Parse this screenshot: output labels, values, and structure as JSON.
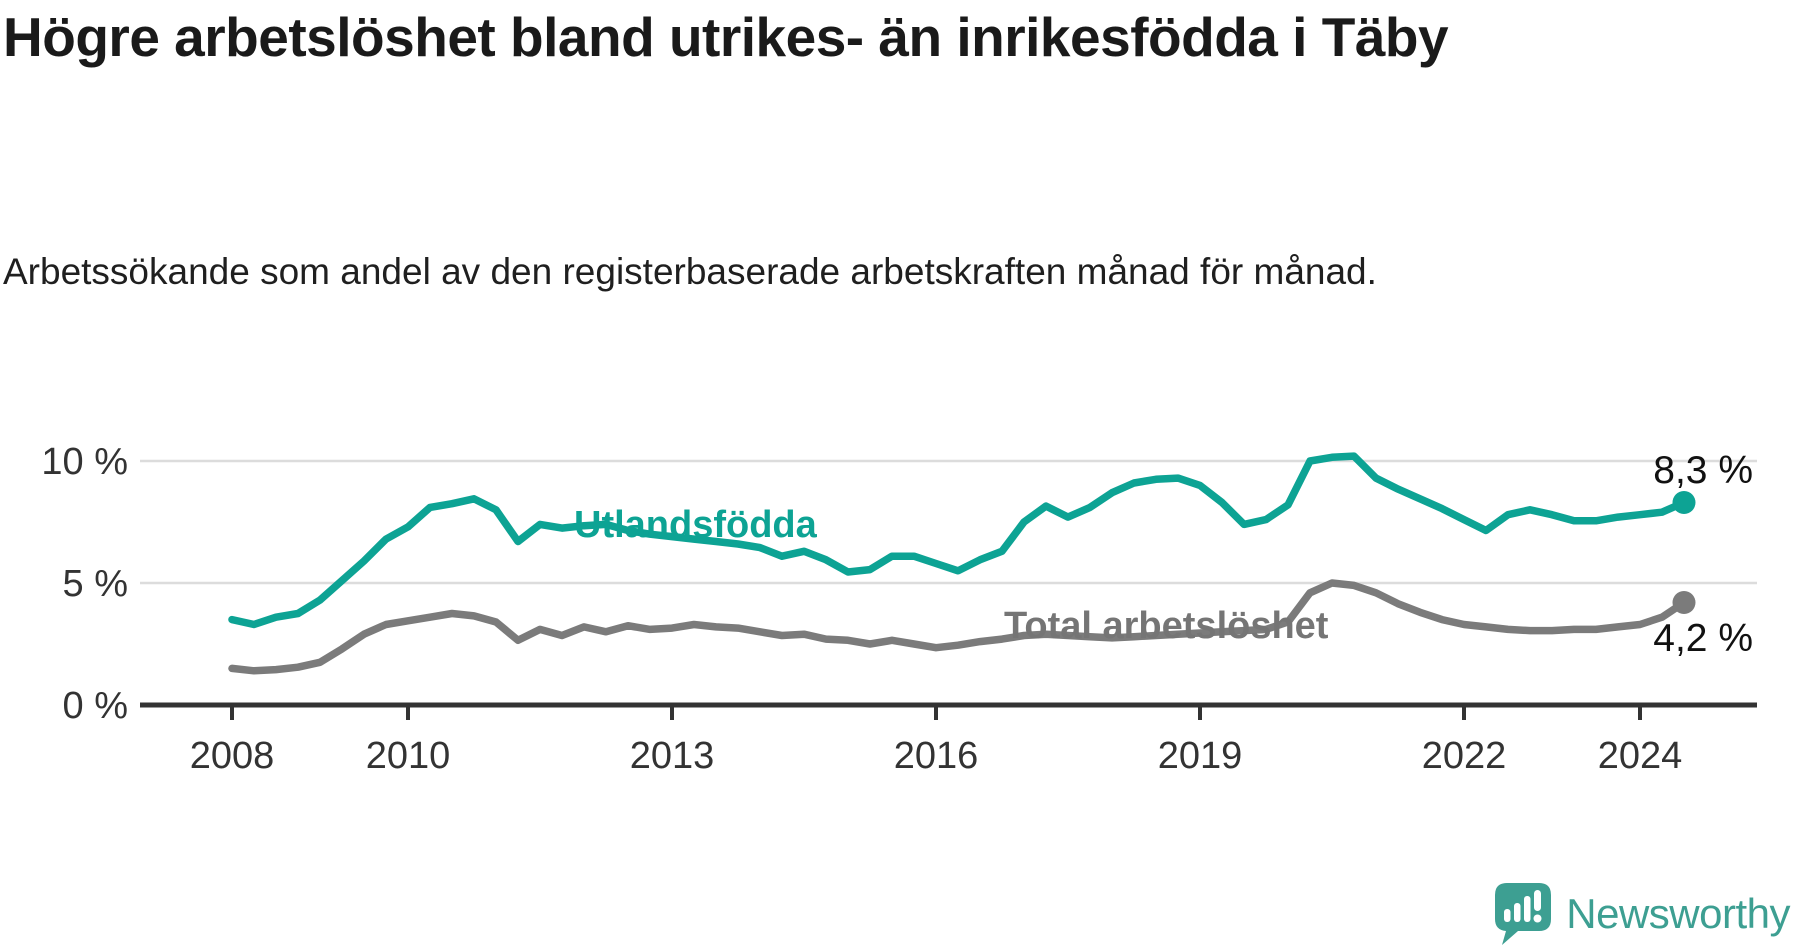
{
  "header": {
    "title": "Högre arbetslöshet bland utrikes- än inrikesfödda i Täby",
    "subtitle": "Arbetssökande som andel av den registerbaserade arbetskraften månad för månad."
  },
  "footer": {
    "brand": "Newsworthy",
    "brand_color": "#3d9f92",
    "logo_icon": "speech-bubble-bar-chart-exclamation"
  },
  "chart_data": {
    "type": "line",
    "title": "Högre arbetslöshet bland utrikes- än inrikesfödda i Täby",
    "xlabel": "",
    "ylabel": "",
    "grid": "horizontal",
    "legend": "inline-labels",
    "xlim": [
      2006.95,
      2025.33
    ],
    "ylim": [
      0,
      11.2
    ],
    "x_ticks": [
      2008,
      2010,
      2013,
      2016,
      2019,
      2022,
      2024
    ],
    "x_tick_labels": [
      "2008",
      "2010",
      "2013",
      "2016",
      "2019",
      "2022",
      "2024"
    ],
    "y_ticks": [
      0,
      5,
      10
    ],
    "y_tick_labels": [
      "0 %",
      "5 %",
      "10 %"
    ],
    "gridline_color": "#dcdcdc",
    "axis_color": "#333333",
    "series": [
      {
        "name": "Utlandsfödda",
        "color": "#0da394",
        "end_label": "8,3 %",
        "end_value": 8.3,
        "x": [
          2008.0,
          2008.25,
          2008.5,
          2008.75,
          2009.0,
          2009.25,
          2009.5,
          2009.75,
          2010.0,
          2010.25,
          2010.5,
          2010.75,
          2011.0,
          2011.25,
          2011.5,
          2011.75,
          2012.0,
          2012.25,
          2012.5,
          2012.75,
          2013.0,
          2013.25,
          2013.5,
          2013.75,
          2014.0,
          2014.25,
          2014.5,
          2014.75,
          2015.0,
          2015.25,
          2015.5,
          2015.75,
          2016.0,
          2016.25,
          2016.5,
          2016.75,
          2017.0,
          2017.25,
          2017.5,
          2017.75,
          2018.0,
          2018.25,
          2018.5,
          2018.75,
          2019.0,
          2019.25,
          2019.5,
          2019.75,
          2020.0,
          2020.25,
          2020.5,
          2020.75,
          2021.0,
          2021.25,
          2021.5,
          2021.75,
          2022.0,
          2022.25,
          2022.5,
          2022.75,
          2023.0,
          2023.25,
          2023.5,
          2023.75,
          2024.0,
          2024.25,
          2024.5
        ],
        "values": [
          3.5,
          3.3,
          3.6,
          3.75,
          4.3,
          5.1,
          5.9,
          6.8,
          7.3,
          8.1,
          8.25,
          8.45,
          8.0,
          6.7,
          7.4,
          7.25,
          7.35,
          7.4,
          7.15,
          7.0,
          6.9,
          6.8,
          6.7,
          6.6,
          6.45,
          6.1,
          6.3,
          5.95,
          5.45,
          5.55,
          6.1,
          6.1,
          5.8,
          5.5,
          5.95,
          6.3,
          7.5,
          8.15,
          7.7,
          8.1,
          8.7,
          9.1,
          9.25,
          9.3,
          9.0,
          8.3,
          7.4,
          7.6,
          8.2,
          10.0,
          10.15,
          10.2,
          9.3,
          8.85,
          8.45,
          8.05,
          7.6,
          7.15,
          7.8,
          8.0,
          7.8,
          7.55,
          7.55,
          7.7,
          7.8,
          7.9,
          8.3
        ]
      },
      {
        "name": "Total arbetslöshet",
        "color": "#7b7b7b",
        "end_label": "4,2 %",
        "end_value": 4.2,
        "x": [
          2008.0,
          2008.25,
          2008.5,
          2008.75,
          2009.0,
          2009.25,
          2009.5,
          2009.75,
          2010.0,
          2010.25,
          2010.5,
          2010.75,
          2011.0,
          2011.25,
          2011.5,
          2011.75,
          2012.0,
          2012.25,
          2012.5,
          2012.75,
          2013.0,
          2013.25,
          2013.5,
          2013.75,
          2014.0,
          2014.25,
          2014.5,
          2014.75,
          2015.0,
          2015.25,
          2015.5,
          2015.75,
          2016.0,
          2016.25,
          2016.5,
          2016.75,
          2017.0,
          2017.25,
          2017.5,
          2017.75,
          2018.0,
          2018.25,
          2018.5,
          2018.75,
          2019.0,
          2019.25,
          2019.5,
          2019.75,
          2020.0,
          2020.25,
          2020.5,
          2020.75,
          2021.0,
          2021.25,
          2021.5,
          2021.75,
          2022.0,
          2022.25,
          2022.5,
          2022.75,
          2023.0,
          2023.25,
          2023.5,
          2023.75,
          2024.0,
          2024.25,
          2024.5
        ],
        "values": [
          1.5,
          1.4,
          1.45,
          1.55,
          1.75,
          2.3,
          2.9,
          3.3,
          3.45,
          3.6,
          3.75,
          3.65,
          3.4,
          2.65,
          3.1,
          2.85,
          3.2,
          3.0,
          3.25,
          3.1,
          3.15,
          3.3,
          3.2,
          3.15,
          3.0,
          2.85,
          2.9,
          2.7,
          2.65,
          2.5,
          2.65,
          2.5,
          2.35,
          2.45,
          2.6,
          2.7,
          2.85,
          2.9,
          2.85,
          2.8,
          2.75,
          2.8,
          2.85,
          2.9,
          2.95,
          3.0,
          3.05,
          3.1,
          3.4,
          4.6,
          5.0,
          4.9,
          4.6,
          4.15,
          3.8,
          3.5,
          3.3,
          3.2,
          3.1,
          3.05,
          3.05,
          3.1,
          3.1,
          3.2,
          3.3,
          3.6,
          4.2
        ]
      }
    ]
  }
}
